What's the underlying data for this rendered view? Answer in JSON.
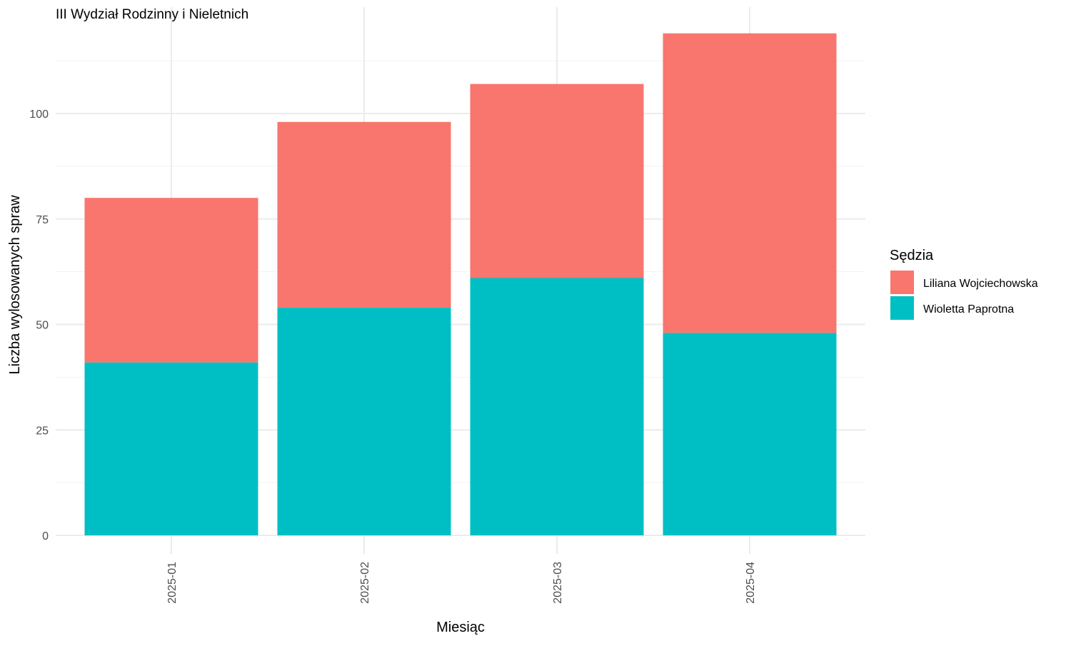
{
  "chart_data": {
    "type": "bar",
    "stacked": true,
    "title": "III Wydział Rodzinny i Nieletnich",
    "xlabel": "Miesiąc",
    "ylabel": "Liczba wylosowanych spraw",
    "categories": [
      "2025-01",
      "2025-02",
      "2025-03",
      "2025-04"
    ],
    "series": [
      {
        "name": "Wioletta Paprotna",
        "color": "#00BFC4",
        "values": [
          41,
          54,
          61,
          48
        ]
      },
      {
        "name": "Liliana Wojciechowska",
        "color": "#F8766D",
        "values": [
          39,
          44,
          46,
          71
        ]
      }
    ],
    "y_ticks": [
      0,
      25,
      50,
      75,
      100
    ],
    "ylim": [
      0,
      119
    ],
    "grid": true,
    "legend": {
      "title": "Sędzia",
      "position": "right",
      "order": [
        "Liliana Wojciechowska",
        "Wioletta Paprotna"
      ]
    }
  }
}
